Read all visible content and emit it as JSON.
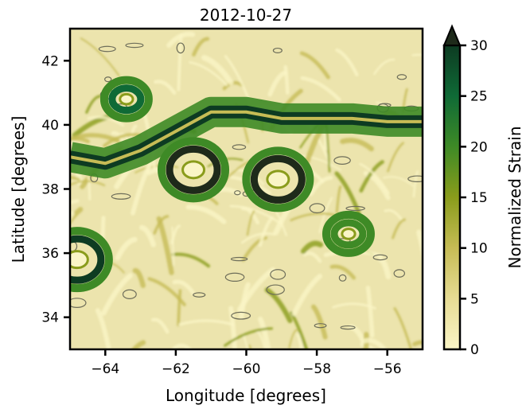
{
  "chart_data": {
    "type": "heatmap",
    "title": "2012-10-27",
    "xlabel": "Longitude [degrees]",
    "ylabel": "Latitude [degrees]",
    "xlim": [
      -65,
      -55
    ],
    "ylim": [
      33,
      43
    ],
    "x_ticks": [
      -64,
      -62,
      -60,
      -58,
      -56
    ],
    "x_tick_labels": [
      "−64",
      "−62",
      "−60",
      "−58",
      "−56"
    ],
    "y_ticks": [
      34,
      36,
      38,
      40,
      42
    ],
    "y_tick_labels": [
      "34",
      "36",
      "38",
      "40",
      "42"
    ],
    "colorbar": {
      "label": "Normalized Strain",
      "range": [
        0,
        30
      ],
      "extend": "max",
      "ticks": [
        0,
        5,
        10,
        15,
        20,
        25,
        30
      ],
      "tick_labels": [
        "0",
        "5",
        "10",
        "15",
        "20",
        "25",
        "30"
      ],
      "colors": [
        "#faf5c6",
        "#e7dc94",
        "#c6bc55",
        "#8a9c1b",
        "#3e8a26",
        "#0f6a36",
        "#0d3b22",
        "#1e2a1a"
      ]
    },
    "features": [
      {
        "kind": "jet-axis",
        "lon": [
          -65,
          -64,
          -63,
          -62,
          -61,
          -60,
          -59,
          -58,
          -57,
          -56,
          -55
        ],
        "lat": [
          39.0,
          38.8,
          39.2,
          39.8,
          40.4,
          40.4,
          40.2,
          40.2,
          40.2,
          40.1,
          40.1
        ],
        "strain": 25
      },
      {
        "kind": "ring",
        "lon": -59.1,
        "lat": 38.3,
        "strain": 28
      },
      {
        "kind": "ring",
        "lon": -61.5,
        "lat": 38.6,
        "strain": 28
      },
      {
        "kind": "ring",
        "lon": -63.4,
        "lat": 40.8,
        "strain": 22
      },
      {
        "kind": "ring",
        "lon": -57.1,
        "lat": 36.6,
        "strain": 18
      },
      {
        "kind": "ring",
        "lon": -64.8,
        "lat": 35.8,
        "strain": 26
      }
    ]
  }
}
